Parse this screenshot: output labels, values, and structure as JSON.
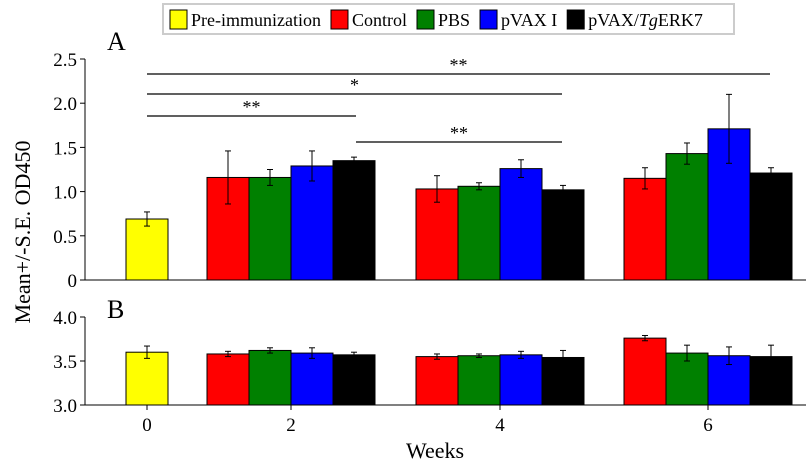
{
  "chart_data": {
    "type": "bar",
    "ylabel": "Mean+/-S.E. OD450",
    "xlabel": "Weeks",
    "x_ticks": [
      "0",
      "2",
      "4",
      "6"
    ],
    "legend": [
      {
        "label_pre": "Pre-immunization",
        "label_italic": "",
        "label_post": "",
        "color": "#ffff00"
      },
      {
        "label_pre": "Control",
        "label_italic": "",
        "label_post": "",
        "color": "#ff0000"
      },
      {
        "label_pre": "PBS",
        "label_italic": "",
        "label_post": "",
        "color": "#008000"
      },
      {
        "label_pre": "pVAX I",
        "label_italic": "",
        "label_post": "",
        "color": "#0000ff"
      },
      {
        "label_pre": "pVAX/",
        "label_italic": "Tg",
        "label_post": "ERK7",
        "color": "#000000"
      }
    ],
    "panels": [
      {
        "label": "A",
        "ylim": [
          0,
          2.5
        ],
        "yticks": [
          "0",
          "0.5",
          "1.0",
          "1.5",
          "2.0",
          "2.5"
        ],
        "bars": [
          {
            "week": 0,
            "series": 0,
            "value": 0.69,
            "err": 0.08
          },
          {
            "week": 2,
            "series": 1,
            "value": 1.16,
            "err": 0.3
          },
          {
            "week": 2,
            "series": 2,
            "value": 1.16,
            "err": 0.09
          },
          {
            "week": 2,
            "series": 3,
            "value": 1.29,
            "err": 0.17
          },
          {
            "week": 2,
            "series": 4,
            "value": 1.35,
            "err": 0.04
          },
          {
            "week": 4,
            "series": 1,
            "value": 1.03,
            "err": 0.15
          },
          {
            "week": 4,
            "series": 2,
            "value": 1.06,
            "err": 0.04
          },
          {
            "week": 4,
            "series": 3,
            "value": 1.26,
            "err": 0.1
          },
          {
            "week": 4,
            "series": 4,
            "value": 1.02,
            "err": 0.05
          },
          {
            "week": 6,
            "series": 1,
            "value": 1.15,
            "err": 0.12
          },
          {
            "week": 6,
            "series": 2,
            "value": 1.43,
            "err": 0.12
          },
          {
            "week": 6,
            "series": 3,
            "value": 1.71,
            "err": 0.39
          },
          {
            "week": 6,
            "series": 4,
            "value": 1.21,
            "err": 0.06
          }
        ],
        "significance": [
          {
            "label": "**",
            "from_week": 0,
            "to_week": 6
          },
          {
            "label": "*",
            "from_week": 0,
            "to_week": 4
          },
          {
            "label": "**",
            "from_week": 0,
            "to_week": 2
          },
          {
            "label": "**",
            "from_week": 2,
            "to_week": 4
          }
        ]
      },
      {
        "label": "B",
        "ylim": [
          3.0,
          4.0
        ],
        "yticks": [
          "3.0",
          "3.5",
          "4.0"
        ],
        "bars": [
          {
            "week": 0,
            "series": 0,
            "value": 3.6,
            "err": 0.07
          },
          {
            "week": 2,
            "series": 1,
            "value": 3.58,
            "err": 0.03
          },
          {
            "week": 2,
            "series": 2,
            "value": 3.62,
            "err": 0.03
          },
          {
            "week": 2,
            "series": 3,
            "value": 3.59,
            "err": 0.06
          },
          {
            "week": 2,
            "series": 4,
            "value": 3.57,
            "err": 0.03
          },
          {
            "week": 4,
            "series": 1,
            "value": 3.55,
            "err": 0.03
          },
          {
            "week": 4,
            "series": 2,
            "value": 3.56,
            "err": 0.02
          },
          {
            "week": 4,
            "series": 3,
            "value": 3.57,
            "err": 0.04
          },
          {
            "week": 4,
            "series": 4,
            "value": 3.54,
            "err": 0.08
          },
          {
            "week": 6,
            "series": 1,
            "value": 3.76,
            "err": 0.03
          },
          {
            "week": 6,
            "series": 2,
            "value": 3.59,
            "err": 0.09
          },
          {
            "week": 6,
            "series": 3,
            "value": 3.56,
            "err": 0.1
          },
          {
            "week": 6,
            "series": 4,
            "value": 3.55,
            "err": 0.13
          }
        ]
      }
    ]
  }
}
